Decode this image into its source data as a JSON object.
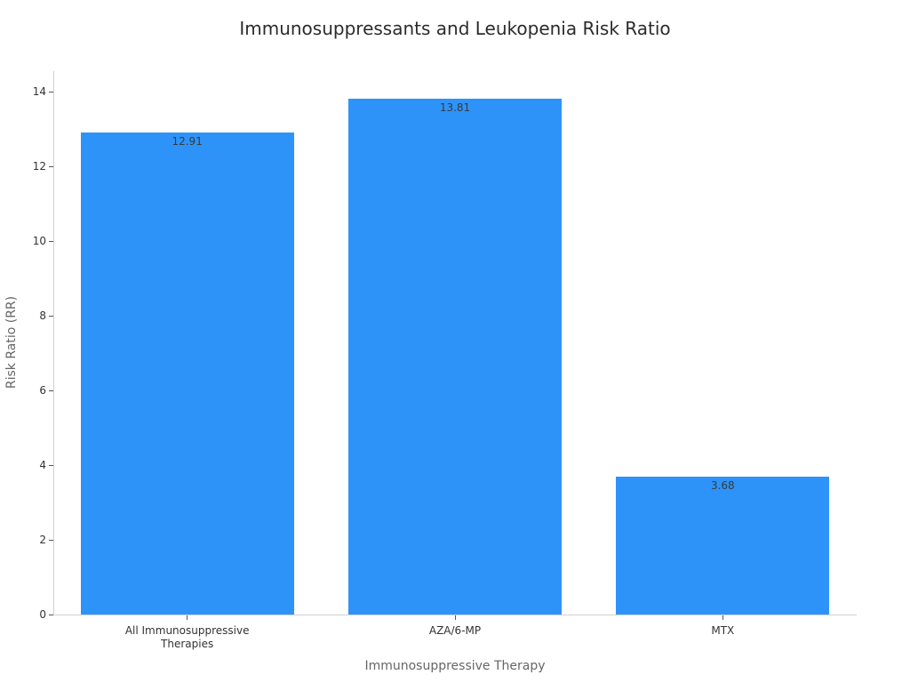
{
  "chart_data": {
    "type": "bar",
    "title": "Immunosuppressants and Leukopenia Risk Ratio",
    "xlabel": "Immunosuppressive Therapy",
    "ylabel": "Risk Ratio (RR)",
    "categories": [
      "All Immunosuppressive Therapies",
      "AZA/6-MP",
      "MTX"
    ],
    "values": [
      12.91,
      13.81,
      3.68
    ],
    "value_labels": [
      "12.91",
      "13.81",
      "3.68"
    ],
    "ylim": [
      0,
      14.5
    ],
    "yticks": [
      0,
      2,
      4,
      6,
      8,
      10,
      12,
      14
    ],
    "grid": false,
    "legend": null,
    "bar_color": "#2e93f9"
  },
  "xtick_lines": [
    [
      "All Immunosuppressive",
      "Therapies"
    ],
    [
      "AZA/6-MP"
    ],
    [
      "MTX"
    ]
  ]
}
